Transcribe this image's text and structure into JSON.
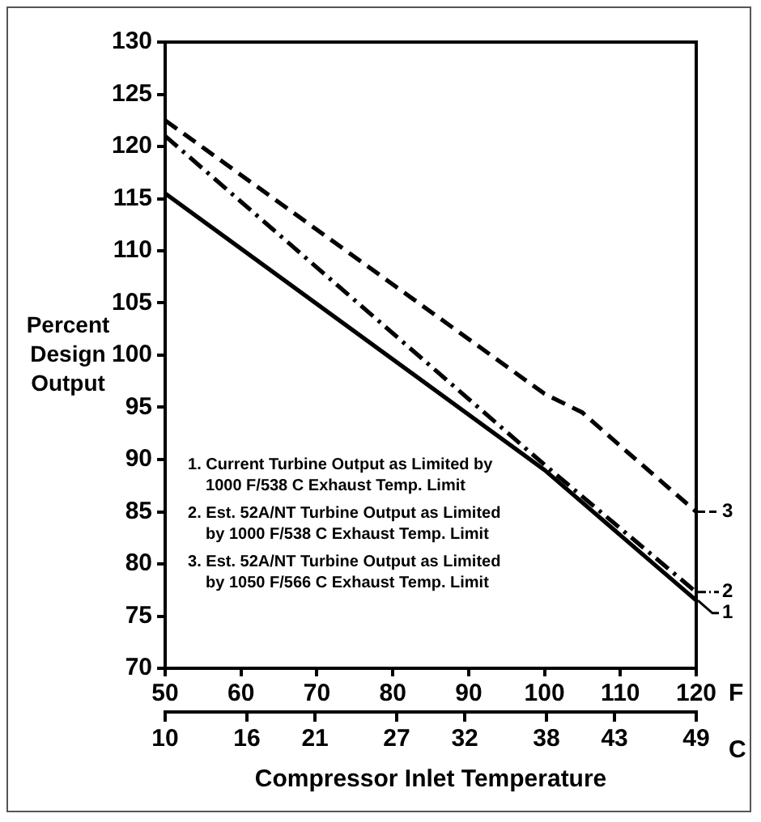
{
  "chart_data": {
    "type": "line",
    "ylabel": "Percent Design Output",
    "xlabel": "F",
    "x2label": "C",
    "annotations": [
      "1. Current Turbine Output as Limited by 1000 F/538 C Exhaust Temp. Limit",
      "2. Est. 52A/NT Turbine Output as Limited by 1000 F/538 C Exhaust Temp. Limit",
      "3. Est. 52A/NT Turbine Output as Limited by 1050 F/566 C Exhaust Temp. Limit",
      "Compressor Inlet Temperature"
    ],
    "xlim": [
      50,
      120
    ],
    "xticks": [
      50,
      60,
      70,
      80,
      90,
      100,
      110,
      120
    ],
    "x2lim": [
      10,
      49
    ],
    "x2ticks": [
      10,
      16,
      21,
      27,
      32,
      38,
      43,
      49
    ],
    "ylim": [
      70,
      130
    ],
    "yticks": [
      70,
      75,
      80,
      85,
      90,
      95,
      100,
      105,
      110,
      115,
      120,
      125,
      130
    ],
    "grid": false,
    "legend": "right",
    "marker": "none",
    "series": [
      {
        "name": "1",
        "color": "#000000",
        "line_style": "solid",
        "x": [
          50,
          100,
          120
        ],
        "values": [
          115.5,
          89,
          76.5
        ]
      },
      {
        "name": "2",
        "color": "#000000",
        "line_style": "dashdot",
        "x": [
          50,
          100,
          120
        ],
        "values": [
          121,
          89.5,
          77.3
        ]
      },
      {
        "name": "3",
        "color": "#000000",
        "line_style": "dashed",
        "x": [
          50,
          100,
          105,
          110,
          120
        ],
        "values": [
          122.5,
          96.3,
          94.5,
          91.3,
          85
        ]
      }
    ]
  }
}
